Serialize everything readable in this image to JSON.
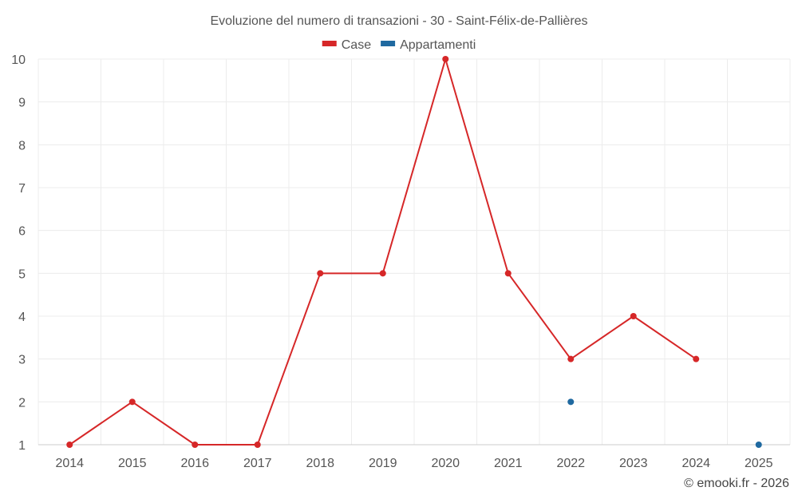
{
  "chart_data": {
    "type": "line",
    "title": "Evoluzione del numero di transazioni - 30 - Saint-Félix-de-Pallières",
    "categories": [
      "2014",
      "2015",
      "2016",
      "2017",
      "2018",
      "2019",
      "2020",
      "2021",
      "2022",
      "2023",
      "2024",
      "2025"
    ],
    "ylim": [
      1,
      10
    ],
    "yticks": [
      1,
      2,
      3,
      4,
      5,
      6,
      7,
      8,
      9,
      10
    ],
    "grid": true,
    "legend_position": "top-center",
    "series": [
      {
        "name": "Case",
        "color": "#d62728",
        "values": [
          1,
          2,
          1,
          1,
          5,
          5,
          10,
          5,
          3,
          4,
          3,
          null
        ]
      },
      {
        "name": "Appartamenti",
        "color": "#1f69a0",
        "values": [
          null,
          null,
          null,
          null,
          null,
          null,
          null,
          null,
          2,
          null,
          null,
          1
        ]
      }
    ],
    "credit": "© emooki.fr - 2026"
  }
}
